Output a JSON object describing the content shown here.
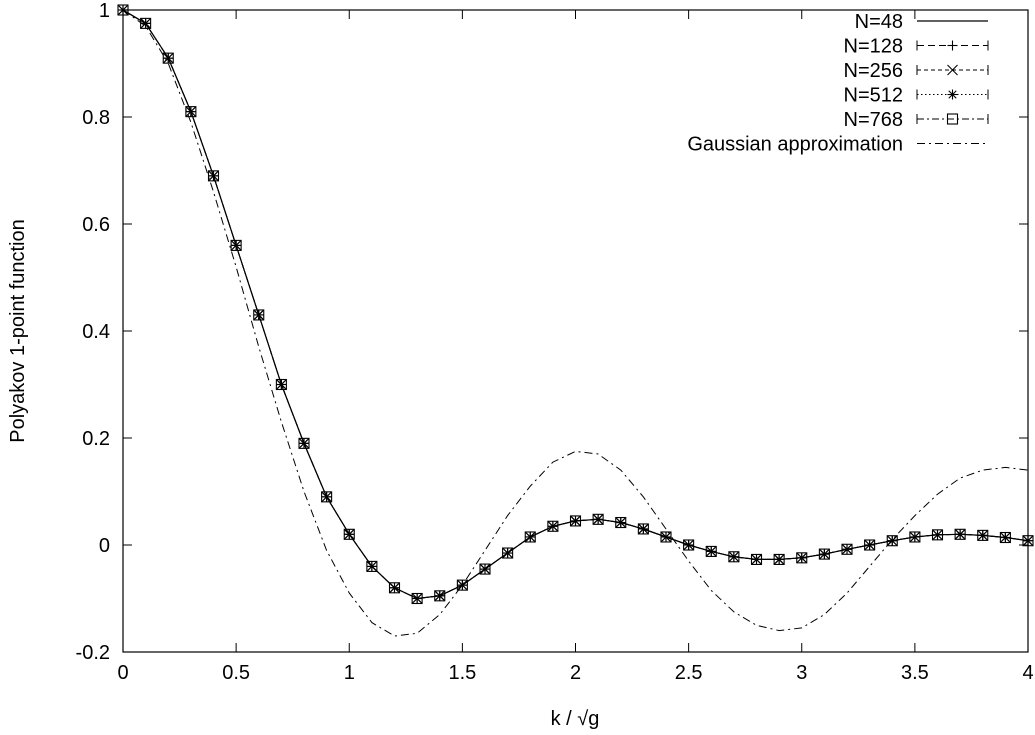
{
  "chart_data": {
    "type": "line",
    "title": "",
    "xlabel": "k / √g",
    "ylabel": "Polyakov 1-point function",
    "xlim": [
      0,
      4
    ],
    "ylim": [
      -0.2,
      1
    ],
    "x_ticks": [
      "0",
      "0.5",
      "1",
      "1.5",
      "2",
      "2.5",
      "3",
      "3.5",
      "4"
    ],
    "y_ticks": [
      "-0.2",
      "0",
      "0.2",
      "0.4",
      "0.6",
      "0.8",
      "1"
    ],
    "grid": false,
    "legend_position": "top-right",
    "series": [
      {
        "name": "N=48",
        "style": "solid-line",
        "x": [
          0,
          0.1,
          0.2,
          0.3,
          0.4,
          0.5,
          0.6,
          0.7,
          0.8,
          0.9,
          1.0,
          1.1,
          1.2,
          1.3,
          1.4,
          1.5,
          1.6,
          1.7,
          1.8,
          1.9,
          2.0,
          2.1,
          2.2,
          2.3,
          2.4,
          2.5,
          2.6,
          2.7,
          2.8,
          2.9,
          3.0,
          3.1,
          3.2,
          3.3,
          3.4,
          3.5,
          3.6,
          3.7,
          3.8,
          3.9,
          4.0
        ],
        "y": [
          1.0,
          0.975,
          0.91,
          0.81,
          0.69,
          0.56,
          0.43,
          0.3,
          0.19,
          0.09,
          0.02,
          -0.04,
          -0.08,
          -0.1,
          -0.095,
          -0.075,
          -0.045,
          -0.015,
          0.015,
          0.035,
          0.045,
          0.048,
          0.042,
          0.03,
          0.015,
          0.0,
          -0.012,
          -0.022,
          -0.027,
          -0.027,
          -0.024,
          -0.017,
          -0.008,
          0.0,
          0.008,
          0.015,
          0.019,
          0.02,
          0.018,
          0.014,
          0.008
        ]
      },
      {
        "name": "N=128",
        "style": "dashed-plus",
        "x": [
          0,
          0.1,
          0.2,
          0.3,
          0.4,
          0.5,
          0.6,
          0.7,
          0.8,
          0.9,
          1.0,
          1.1,
          1.2,
          1.3,
          1.4,
          1.5,
          1.6,
          1.7,
          1.8,
          1.9,
          2.0,
          2.1,
          2.2,
          2.3,
          2.4,
          2.5,
          2.6,
          2.7,
          2.8,
          2.9,
          3.0,
          3.1,
          3.2,
          3.3,
          3.4,
          3.5,
          3.6,
          3.7,
          3.8,
          3.9,
          4.0
        ],
        "y": [
          1.0,
          0.975,
          0.91,
          0.81,
          0.69,
          0.56,
          0.43,
          0.3,
          0.19,
          0.09,
          0.02,
          -0.04,
          -0.08,
          -0.1,
          -0.095,
          -0.075,
          -0.045,
          -0.015,
          0.015,
          0.035,
          0.045,
          0.048,
          0.042,
          0.03,
          0.015,
          0.0,
          -0.012,
          -0.022,
          -0.027,
          -0.027,
          -0.024,
          -0.017,
          -0.008,
          0.0,
          0.008,
          0.015,
          0.019,
          0.02,
          0.018,
          0.014,
          0.008
        ]
      },
      {
        "name": "N=256",
        "style": "short-dashed-cross",
        "x": [
          0,
          0.1,
          0.2,
          0.3,
          0.4,
          0.5,
          0.6,
          0.7,
          0.8,
          0.9,
          1.0,
          1.1,
          1.2,
          1.3,
          1.4,
          1.5,
          1.6,
          1.7,
          1.8,
          1.9,
          2.0,
          2.1,
          2.2,
          2.3,
          2.4,
          2.5,
          2.6,
          2.7,
          2.8,
          2.9,
          3.0,
          3.1,
          3.2,
          3.3,
          3.4,
          3.5,
          3.6,
          3.7,
          3.8,
          3.9,
          4.0
        ],
        "y": [
          1.0,
          0.975,
          0.91,
          0.81,
          0.69,
          0.56,
          0.43,
          0.3,
          0.19,
          0.09,
          0.02,
          -0.04,
          -0.08,
          -0.1,
          -0.095,
          -0.075,
          -0.045,
          -0.015,
          0.015,
          0.035,
          0.045,
          0.048,
          0.042,
          0.03,
          0.015,
          0.0,
          -0.012,
          -0.022,
          -0.027,
          -0.027,
          -0.024,
          -0.017,
          -0.008,
          0.0,
          0.008,
          0.015,
          0.019,
          0.02,
          0.018,
          0.014,
          0.008
        ]
      },
      {
        "name": "N=512",
        "style": "dotted-star",
        "x": [
          0,
          0.1,
          0.2,
          0.3,
          0.4,
          0.5,
          0.6,
          0.7,
          0.8,
          0.9,
          1.0,
          1.1,
          1.2,
          1.3,
          1.4,
          1.5,
          1.6,
          1.7,
          1.8,
          1.9,
          2.0,
          2.1,
          2.2,
          2.3,
          2.4,
          2.5,
          2.6,
          2.7,
          2.8,
          2.9,
          3.0,
          3.1,
          3.2,
          3.3,
          3.4,
          3.5,
          3.6,
          3.7,
          3.8,
          3.9,
          4.0
        ],
        "y": [
          1.0,
          0.975,
          0.91,
          0.81,
          0.69,
          0.56,
          0.43,
          0.3,
          0.19,
          0.09,
          0.02,
          -0.04,
          -0.08,
          -0.1,
          -0.095,
          -0.075,
          -0.045,
          -0.015,
          0.015,
          0.035,
          0.045,
          0.048,
          0.042,
          0.03,
          0.015,
          0.0,
          -0.012,
          -0.022,
          -0.027,
          -0.027,
          -0.024,
          -0.017,
          -0.008,
          0.0,
          0.008,
          0.015,
          0.019,
          0.02,
          0.018,
          0.014,
          0.008
        ]
      },
      {
        "name": "N=768",
        "style": "dash-dot-square",
        "x": [
          0,
          0.1,
          0.2,
          0.3,
          0.4,
          0.5,
          0.6,
          0.7,
          0.8,
          0.9,
          1.0,
          1.1,
          1.2,
          1.3,
          1.4,
          1.5,
          1.6,
          1.7,
          1.8,
          1.9,
          2.0,
          2.1,
          2.2,
          2.3,
          2.4,
          2.5,
          2.6,
          2.7,
          2.8,
          2.9,
          3.0,
          3.1,
          3.2,
          3.3,
          3.4,
          3.5,
          3.6,
          3.7,
          3.8,
          3.9,
          4.0
        ],
        "y": [
          1.0,
          0.975,
          0.91,
          0.81,
          0.69,
          0.56,
          0.43,
          0.3,
          0.19,
          0.09,
          0.02,
          -0.04,
          -0.08,
          -0.1,
          -0.095,
          -0.075,
          -0.045,
          -0.015,
          0.015,
          0.035,
          0.045,
          0.048,
          0.042,
          0.03,
          0.015,
          0.0,
          -0.012,
          -0.022,
          -0.027,
          -0.027,
          -0.024,
          -0.017,
          -0.008,
          0.0,
          0.008,
          0.015,
          0.019,
          0.02,
          0.018,
          0.014,
          0.008
        ]
      },
      {
        "name": "Gaussian approximation",
        "style": "dash-dot",
        "x": [
          0,
          0.1,
          0.2,
          0.3,
          0.4,
          0.5,
          0.6,
          0.7,
          0.8,
          0.9,
          1.0,
          1.1,
          1.2,
          1.3,
          1.4,
          1.5,
          1.6,
          1.7,
          1.8,
          1.9,
          2.0,
          2.1,
          2.2,
          2.3,
          2.4,
          2.5,
          2.6,
          2.7,
          2.8,
          2.9,
          3.0,
          3.1,
          3.2,
          3.3,
          3.4,
          3.5,
          3.6,
          3.7,
          3.8,
          3.9,
          4.0
        ],
        "y": [
          1.0,
          0.97,
          0.9,
          0.79,
          0.66,
          0.52,
          0.37,
          0.23,
          0.1,
          -0.01,
          -0.09,
          -0.145,
          -0.17,
          -0.165,
          -0.13,
          -0.075,
          -0.01,
          0.055,
          0.11,
          0.155,
          0.175,
          0.17,
          0.14,
          0.09,
          0.03,
          -0.03,
          -0.085,
          -0.125,
          -0.15,
          -0.16,
          -0.155,
          -0.13,
          -0.09,
          -0.04,
          0.01,
          0.055,
          0.095,
          0.125,
          0.14,
          0.145,
          0.14
        ]
      }
    ]
  }
}
